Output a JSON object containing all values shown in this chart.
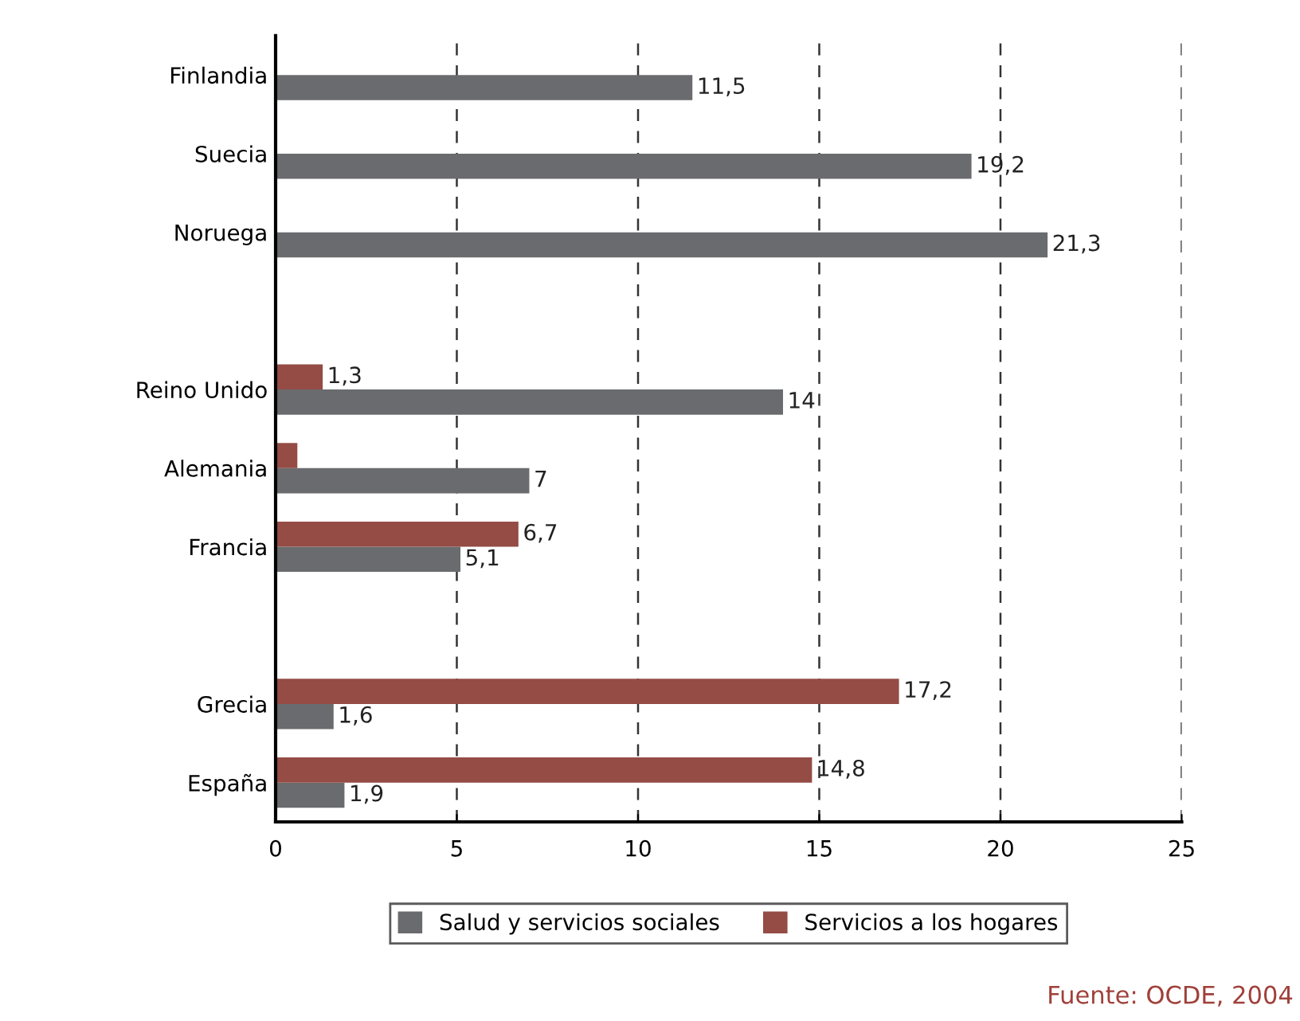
{
  "chart_data": {
    "type": "bar",
    "orientation": "horizontal",
    "categories": [
      "Finlandia",
      "Suecia",
      "Noruega",
      null,
      "Reino Unido",
      "Alemania",
      "Francia",
      null,
      "Grecia",
      "España"
    ],
    "series": [
      {
        "name": "Salud y servicios sociales",
        "color": "#6a6b6e",
        "values": [
          11.5,
          19.2,
          21.3,
          null,
          14,
          7,
          5.1,
          null,
          1.6,
          1.9
        ],
        "value_labels": [
          "11,5",
          "19,2",
          "21,3",
          null,
          "14",
          "7",
          "5,1",
          null,
          "1,6",
          "1,9"
        ]
      },
      {
        "name": "Servicios a los hogares",
        "color": "#944c45",
        "values": [
          null,
          null,
          null,
          null,
          1.3,
          0.6,
          6.7,
          null,
          17.2,
          14.8
        ],
        "value_labels": [
          null,
          null,
          null,
          null,
          "1,3",
          null,
          "6,7",
          null,
          "17,2",
          "14,8"
        ]
      }
    ],
    "xlim": [
      0,
      25
    ],
    "xticks": [
      0,
      5,
      10,
      15,
      20,
      25
    ],
    "grid": "x",
    "legend": "bottom",
    "annotations": [
      "Fuente: OCDE, 2004"
    ]
  }
}
